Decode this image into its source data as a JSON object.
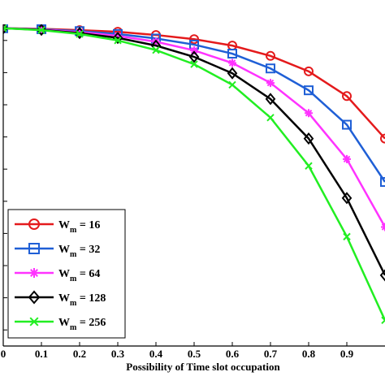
{
  "chart_data": {
    "type": "line",
    "title": "",
    "xlabel": "Possibility of Time slot occupation",
    "ylabel": "",
    "xlim": [
      0,
      1
    ],
    "ylim": [
      0,
      1
    ],
    "grid": false,
    "legend_placement": "bottom-left",
    "x": [
      0,
      0.1,
      0.2,
      0.3,
      0.4,
      0.5,
      0.6,
      0.7,
      0.8,
      0.9,
      1.0
    ],
    "x_ticks": [
      "0",
      "0.1",
      "0.2",
      "0.3",
      "0.4",
      "0.5",
      "0.6",
      "0.7",
      "0.8",
      "0.9"
    ],
    "series": [
      {
        "name": "16",
        "legend_base": "W",
        "legend_sub": "m",
        "legend_suffix": " = 16",
        "marker": "circle",
        "color": "#e41a1c",
        "values": [
          0.988,
          0.986,
          0.982,
          0.977,
          0.967,
          0.954,
          0.934,
          0.902,
          0.854,
          0.777,
          0.645
        ]
      },
      {
        "name": "32",
        "legend_base": "W",
        "legend_sub": "m",
        "legend_suffix": " = 32",
        "marker": "square",
        "color": "#1f5fd6",
        "values": [
          0.988,
          0.985,
          0.979,
          0.97,
          0.956,
          0.937,
          0.909,
          0.863,
          0.795,
          0.688,
          0.51
        ]
      },
      {
        "name": "64",
        "legend_base": "W",
        "legend_sub": "m",
        "legend_suffix": " = 64",
        "marker": "star",
        "color": "#ff33ff",
        "values": [
          0.988,
          0.984,
          0.976,
          0.964,
          0.946,
          0.919,
          0.88,
          0.818,
          0.724,
          0.581,
          0.37
        ]
      },
      {
        "name": "128",
        "legend_base": "W",
        "legend_sub": "m",
        "legend_suffix": " = 128",
        "marker": "diamond",
        "color": "#000000",
        "values": [
          0.988,
          0.983,
          0.973,
          0.958,
          0.934,
          0.899,
          0.848,
          0.768,
          0.645,
          0.46,
          0.22
        ]
      },
      {
        "name": "256",
        "legend_base": "W",
        "legend_sub": "m",
        "legend_suffix": " = 256",
        "marker": "x",
        "color": "#22ee22",
        "values": [
          0.988,
          0.982,
          0.97,
          0.95,
          0.92,
          0.876,
          0.812,
          0.71,
          0.56,
          0.34,
          0.08
        ]
      }
    ]
  }
}
